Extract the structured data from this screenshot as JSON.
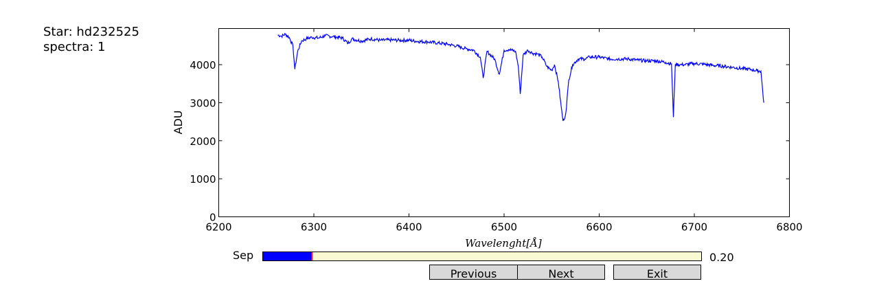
{
  "header": {
    "star_line": "Star: hd232525",
    "spectra_line": "spectra: 1"
  },
  "slider": {
    "label": "Sep",
    "value_text": "0.20",
    "fraction": 0.112,
    "fill_color": "#0000ff",
    "handle_color": "#ff0000",
    "track_color": "#fafad2"
  },
  "buttons": {
    "previous_label": "Previous",
    "next_label": "Next",
    "exit_label": "Exit"
  },
  "chart_data": {
    "type": "line",
    "title": "",
    "xlabel": "Wavelenght[Å]",
    "ylabel": "ADU",
    "xlim": [
      6200,
      6800
    ],
    "ylim": [
      0,
      4950
    ],
    "xticks": [
      6200,
      6300,
      6400,
      6500,
      6600,
      6700,
      6800
    ],
    "yticks": [
      0,
      1000,
      2000,
      3000,
      4000
    ],
    "grid": false,
    "line_color": "#0000ff",
    "series": [
      {
        "x": [
          6262,
          6266,
          6270,
          6274,
          6278,
          6280,
          6283,
          6287,
          6292,
          6298,
          6305,
          6312,
          6320,
          6330,
          6336,
          6340,
          6350,
          6360,
          6370,
          6380,
          6390,
          6400,
          6410,
          6420,
          6430,
          6440,
          6450,
          6460,
          6468,
          6475,
          6478,
          6482,
          6490,
          6495,
          6500,
          6505,
          6512,
          6515,
          6517,
          6520,
          6525,
          6530,
          6535,
          6540,
          6545,
          6550,
          6553,
          6557,
          6560,
          6562,
          6563,
          6565,
          6568,
          6572,
          6578,
          6585,
          6590,
          6600,
          6610,
          6620,
          6630,
          6640,
          6650,
          6660,
          6670,
          6676,
          6678,
          6680,
          6685,
          6690,
          6700,
          6710,
          6720,
          6730,
          6740,
          6750,
          6760,
          6766,
          6770,
          6773
        ],
        "y": [
          4780,
          4750,
          4800,
          4720,
          4500,
          3880,
          4350,
          4620,
          4680,
          4720,
          4700,
          4760,
          4740,
          4700,
          4560,
          4680,
          4620,
          4680,
          4640,
          4650,
          4640,
          4640,
          4610,
          4600,
          4570,
          4540,
          4490,
          4420,
          4380,
          4200,
          3650,
          4350,
          4150,
          3750,
          4380,
          4400,
          4350,
          3950,
          3230,
          4250,
          4380,
          4300,
          4280,
          4200,
          3950,
          3850,
          4000,
          3550,
          2900,
          2520,
          2550,
          2750,
          3600,
          4000,
          4150,
          4150,
          4200,
          4200,
          4150,
          4150,
          4150,
          4120,
          4100,
          4100,
          4060,
          4020,
          2620,
          4010,
          4000,
          4000,
          4030,
          4010,
          3980,
          3960,
          3930,
          3900,
          3870,
          3840,
          3830,
          3000
        ]
      }
    ]
  }
}
